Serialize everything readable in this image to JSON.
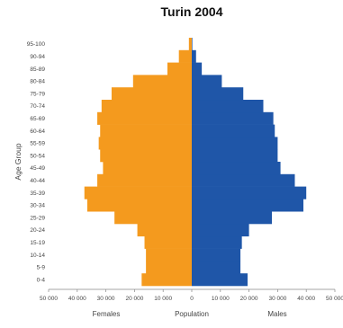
{
  "chart_data": {
    "type": "bar",
    "orientation": "horizontal",
    "title": "Turin 2004",
    "ylabel": "Age Group",
    "xlabel": "Population",
    "categories": [
      "0-4",
      "5-9",
      "10-14",
      "15-19",
      "20-24",
      "25-29",
      "30-34",
      "35-39",
      "40-44",
      "45-49",
      "50-54",
      "55-59",
      "60-64",
      "65-69",
      "70-74",
      "75-79",
      "80-84",
      "85-89",
      "90-94",
      "95-100"
    ],
    "xticks": [
      "50 000",
      "40 000",
      "30 000",
      "20 000",
      "10 000",
      "0",
      "10 000",
      "20 000",
      "30 000",
      "40 000",
      "50 000"
    ],
    "xlim": [
      -50000,
      50000
    ],
    "series": [
      {
        "name": "Females",
        "color": "#f49a1e",
        "values": [
          17500,
          16000,
          16000,
          16500,
          19000,
          27000,
          36500,
          37500,
          33000,
          31000,
          32000,
          32500,
          32000,
          33000,
          31500,
          28000,
          20500,
          8500,
          4500,
          1000
        ]
      },
      {
        "name": "Males",
        "color": "#1f56a8",
        "values": [
          19500,
          17000,
          17000,
          17500,
          20000,
          28000,
          39000,
          40000,
          36000,
          31000,
          30000,
          30000,
          29000,
          28500,
          25000,
          18000,
          10500,
          3500,
          1500,
          200
        ]
      }
    ],
    "legend": "bottom"
  }
}
